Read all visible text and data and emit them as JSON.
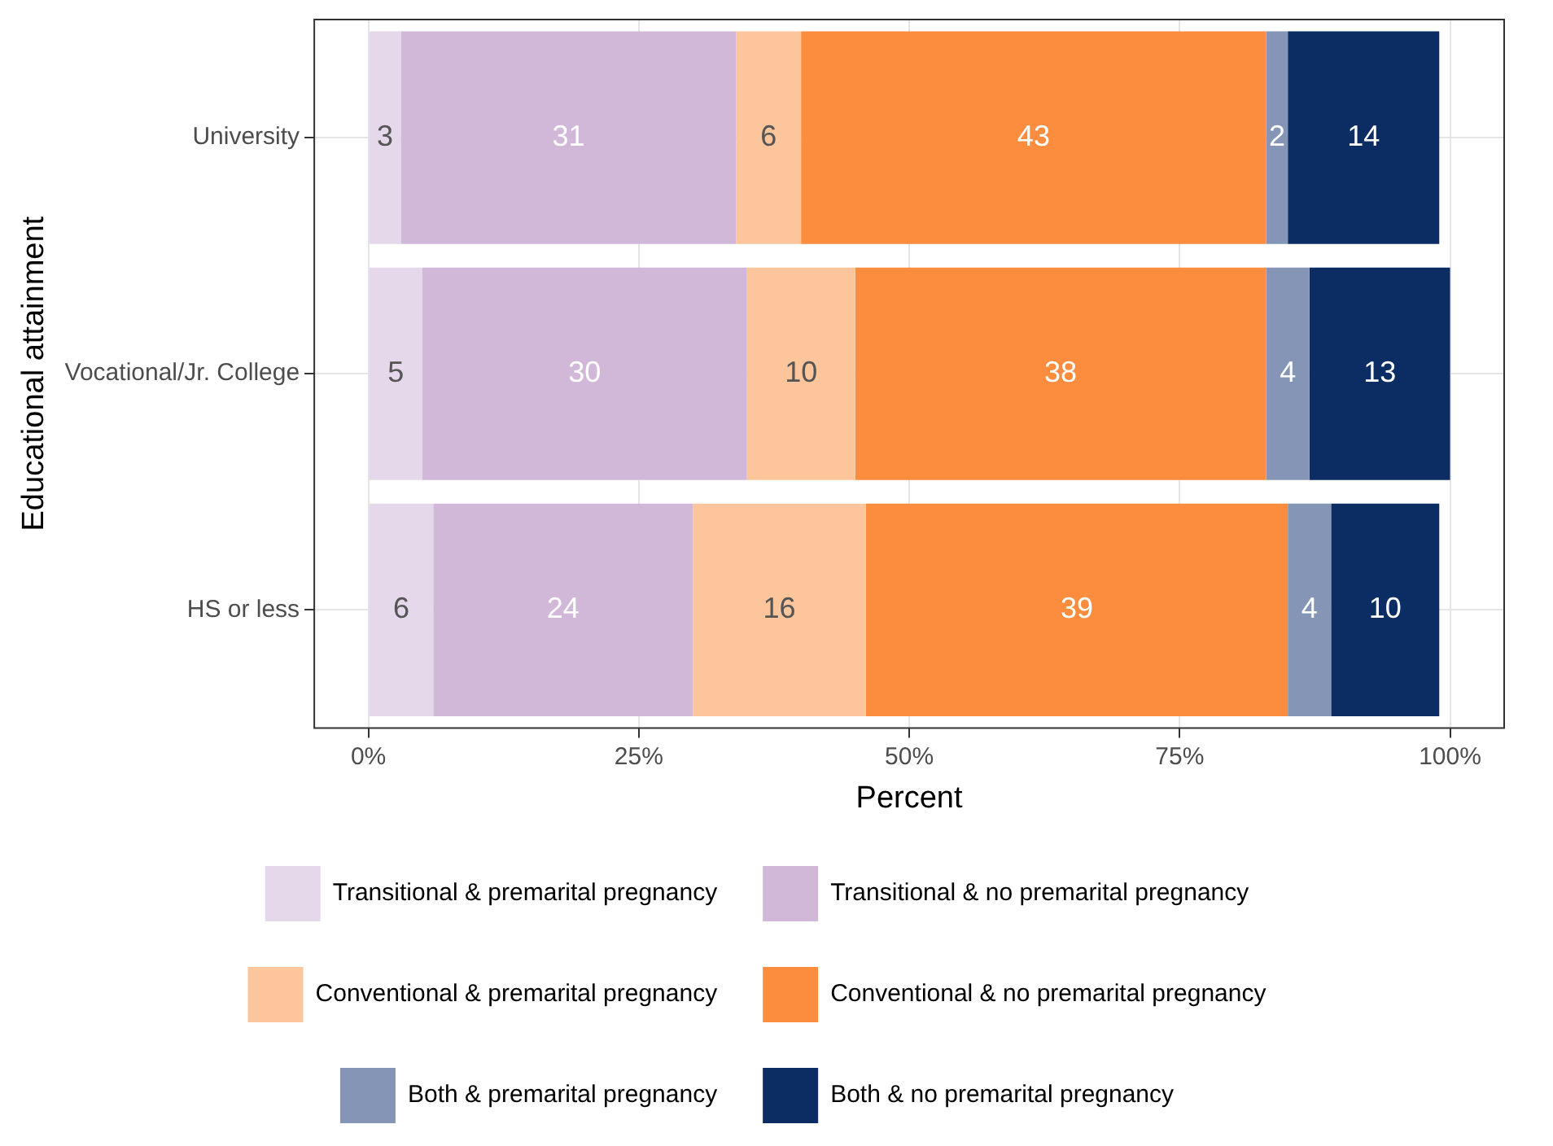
{
  "chart_data": {
    "type": "bar",
    "orientation": "horizontal",
    "stacked": true,
    "xlabel": "Percent",
    "ylabel": "Educational attainment",
    "categories": [
      "University",
      "Vocational/Jr. College",
      "HS or less"
    ],
    "series": [
      {
        "name": "Transitional & premarital pregnancy",
        "color": "#e5d8ea",
        "values": [
          3,
          5,
          6
        ]
      },
      {
        "name": "Transitional & no premarital pregnancy",
        "color": "#d1b8d9",
        "values": [
          31,
          30,
          24
        ]
      },
      {
        "name": "Conventional & premarital pregnancy",
        "color": "#fcc59b",
        "values": [
          6,
          10,
          16
        ]
      },
      {
        "name": "Conventional & no premarital pregnancy",
        "color": "#fc8d3e",
        "values": [
          43,
          38,
          39
        ]
      },
      {
        "name": "Both & premarital pregnancy",
        "color": "#8595b5",
        "values": [
          2,
          4,
          4
        ]
      },
      {
        "name": "Both & no premarital pregnancy",
        "color": "#0b2d64",
        "values": [
          14,
          13,
          10
        ]
      }
    ],
    "xlim": [
      -5,
      105
    ],
    "xticks": [
      {
        "value": 0,
        "label": "0%"
      },
      {
        "value": 25,
        "label": "25%"
      },
      {
        "value": 50,
        "label": "50%"
      },
      {
        "value": 75,
        "label": "75%"
      },
      {
        "value": 100,
        "label": "100%"
      }
    ],
    "data_labels": true,
    "grid": true,
    "legend": "bottom"
  }
}
